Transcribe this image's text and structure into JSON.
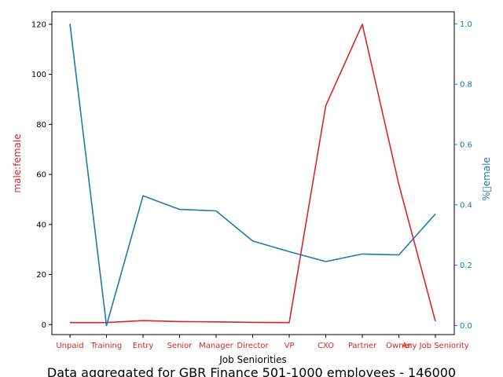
{
  "chart_data": {
    "type": "line",
    "categories": [
      "Unpaid",
      "Training",
      "Entry",
      "Senior",
      "Manager",
      "Director",
      "VP",
      "CXO",
      "Partner",
      "Owner",
      "Any Job Seniority"
    ],
    "xlabel": "Job Seniorities",
    "ylabel_left": "male:female",
    "ylabel_right": "%\u0000emale",
    "ylim_left": [
      -4,
      125
    ],
    "ylim_right": [
      -0.03,
      1.04
    ],
    "yticks_left": [
      "0",
      "20",
      "40",
      "60",
      "80",
      "100",
      "120"
    ],
    "yticks_right": [
      "0.0",
      "0.2",
      "0.4",
      "0.6",
      "0.8",
      "1.0"
    ],
    "series": [
      {
        "axis": "left",
        "color": "#d62728",
        "values": [
          0.8,
          0.8,
          1.6,
          1.2,
          1.1,
          0.9,
          0.8,
          87.5,
          120.0,
          56.0,
          1.3
        ]
      },
      {
        "axis": "right",
        "color": "#1f77b4",
        "values": [
          1.0,
          0.0,
          0.43,
          0.385,
          0.38,
          0.28,
          0.245,
          0.212,
          0.237,
          0.234,
          0.37
        ]
      }
    ],
    "grid": false,
    "caption": "Data aggregated for GBR Finance 501-1000 employees - 146000"
  }
}
